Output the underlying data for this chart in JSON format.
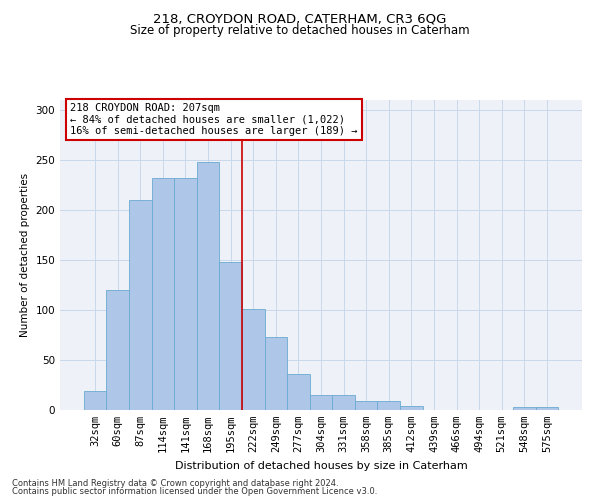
{
  "title1": "218, CROYDON ROAD, CATERHAM, CR3 6QG",
  "title2": "Size of property relative to detached houses in Caterham",
  "xlabel": "Distribution of detached houses by size in Caterham",
  "ylabel": "Number of detached properties",
  "bar_color": "#aec6e8",
  "bar_edge_color": "#6aabd2",
  "categories": [
    "32sqm",
    "60sqm",
    "87sqm",
    "114sqm",
    "141sqm",
    "168sqm",
    "195sqm",
    "222sqm",
    "249sqm",
    "277sqm",
    "304sqm",
    "331sqm",
    "358sqm",
    "385sqm",
    "412sqm",
    "439sqm",
    "466sqm",
    "494sqm",
    "521sqm",
    "548sqm",
    "575sqm"
  ],
  "values": [
    19,
    120,
    210,
    232,
    232,
    248,
    148,
    101,
    73,
    36,
    15,
    15,
    9,
    9,
    4,
    0,
    0,
    0,
    0,
    3,
    3
  ],
  "vline_x": 6.5,
  "annotation_text": "218 CROYDON ROAD: 207sqm\n← 84% of detached houses are smaller (1,022)\n16% of semi-detached houses are larger (189) →",
  "annotation_box_color": "#ffffff",
  "annotation_border_color": "#cc0000",
  "vline_color": "#cc0000",
  "ylim": [
    0,
    310
  ],
  "grid_color": "#c8d8ea",
  "background_color": "#eef2f8",
  "footer1": "Contains HM Land Registry data © Crown copyright and database right 2024.",
  "footer2": "Contains public sector information licensed under the Open Government Licence v3.0."
}
